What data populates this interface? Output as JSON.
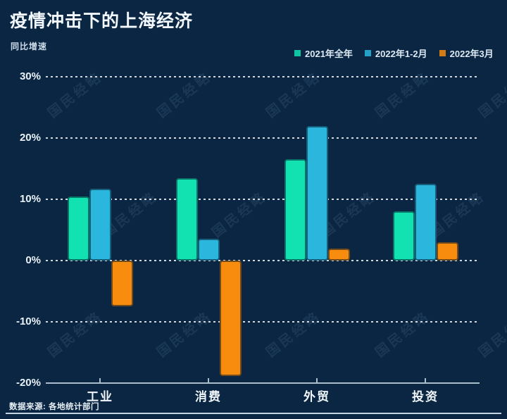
{
  "page": {
    "title": "疫情冲击下的上海经济",
    "subtitle": "同比增速",
    "source": "数据来源: 各地统计部门",
    "watermark": "国民经略"
  },
  "colors": {
    "background": "#0a2642",
    "series": [
      "#12e2b2",
      "#2ab6dd",
      "#f78c0e"
    ],
    "gridline": "#ffffff",
    "axis": "#a9bdca"
  },
  "chart_data": {
    "type": "bar",
    "title": "疫情冲击下的上海经济",
    "ylabel": "同比增速",
    "categories": [
      "工业",
      "消费",
      "外贸",
      "投资"
    ],
    "series": [
      {
        "name": "2021年全年",
        "values": [
          10.5,
          13.5,
          16.5,
          8.0
        ]
      },
      {
        "name": "2022年1-2月",
        "values": [
          11.7,
          3.6,
          22.0,
          12.5
        ]
      },
      {
        "name": "2022年3月",
        "values": [
          -7.5,
          -18.9,
          2.0,
          3.0
        ]
      }
    ],
    "yticks": [
      30,
      20,
      10,
      0,
      -10,
      -20
    ],
    "ytick_labels": [
      "30%",
      "20%",
      "10%",
      "0%",
      "-10%",
      "-20%"
    ],
    "ylim": [
      -20,
      30
    ],
    "unit": "%",
    "grid": "horizontal-dotted",
    "legend_position": "top-right"
  }
}
